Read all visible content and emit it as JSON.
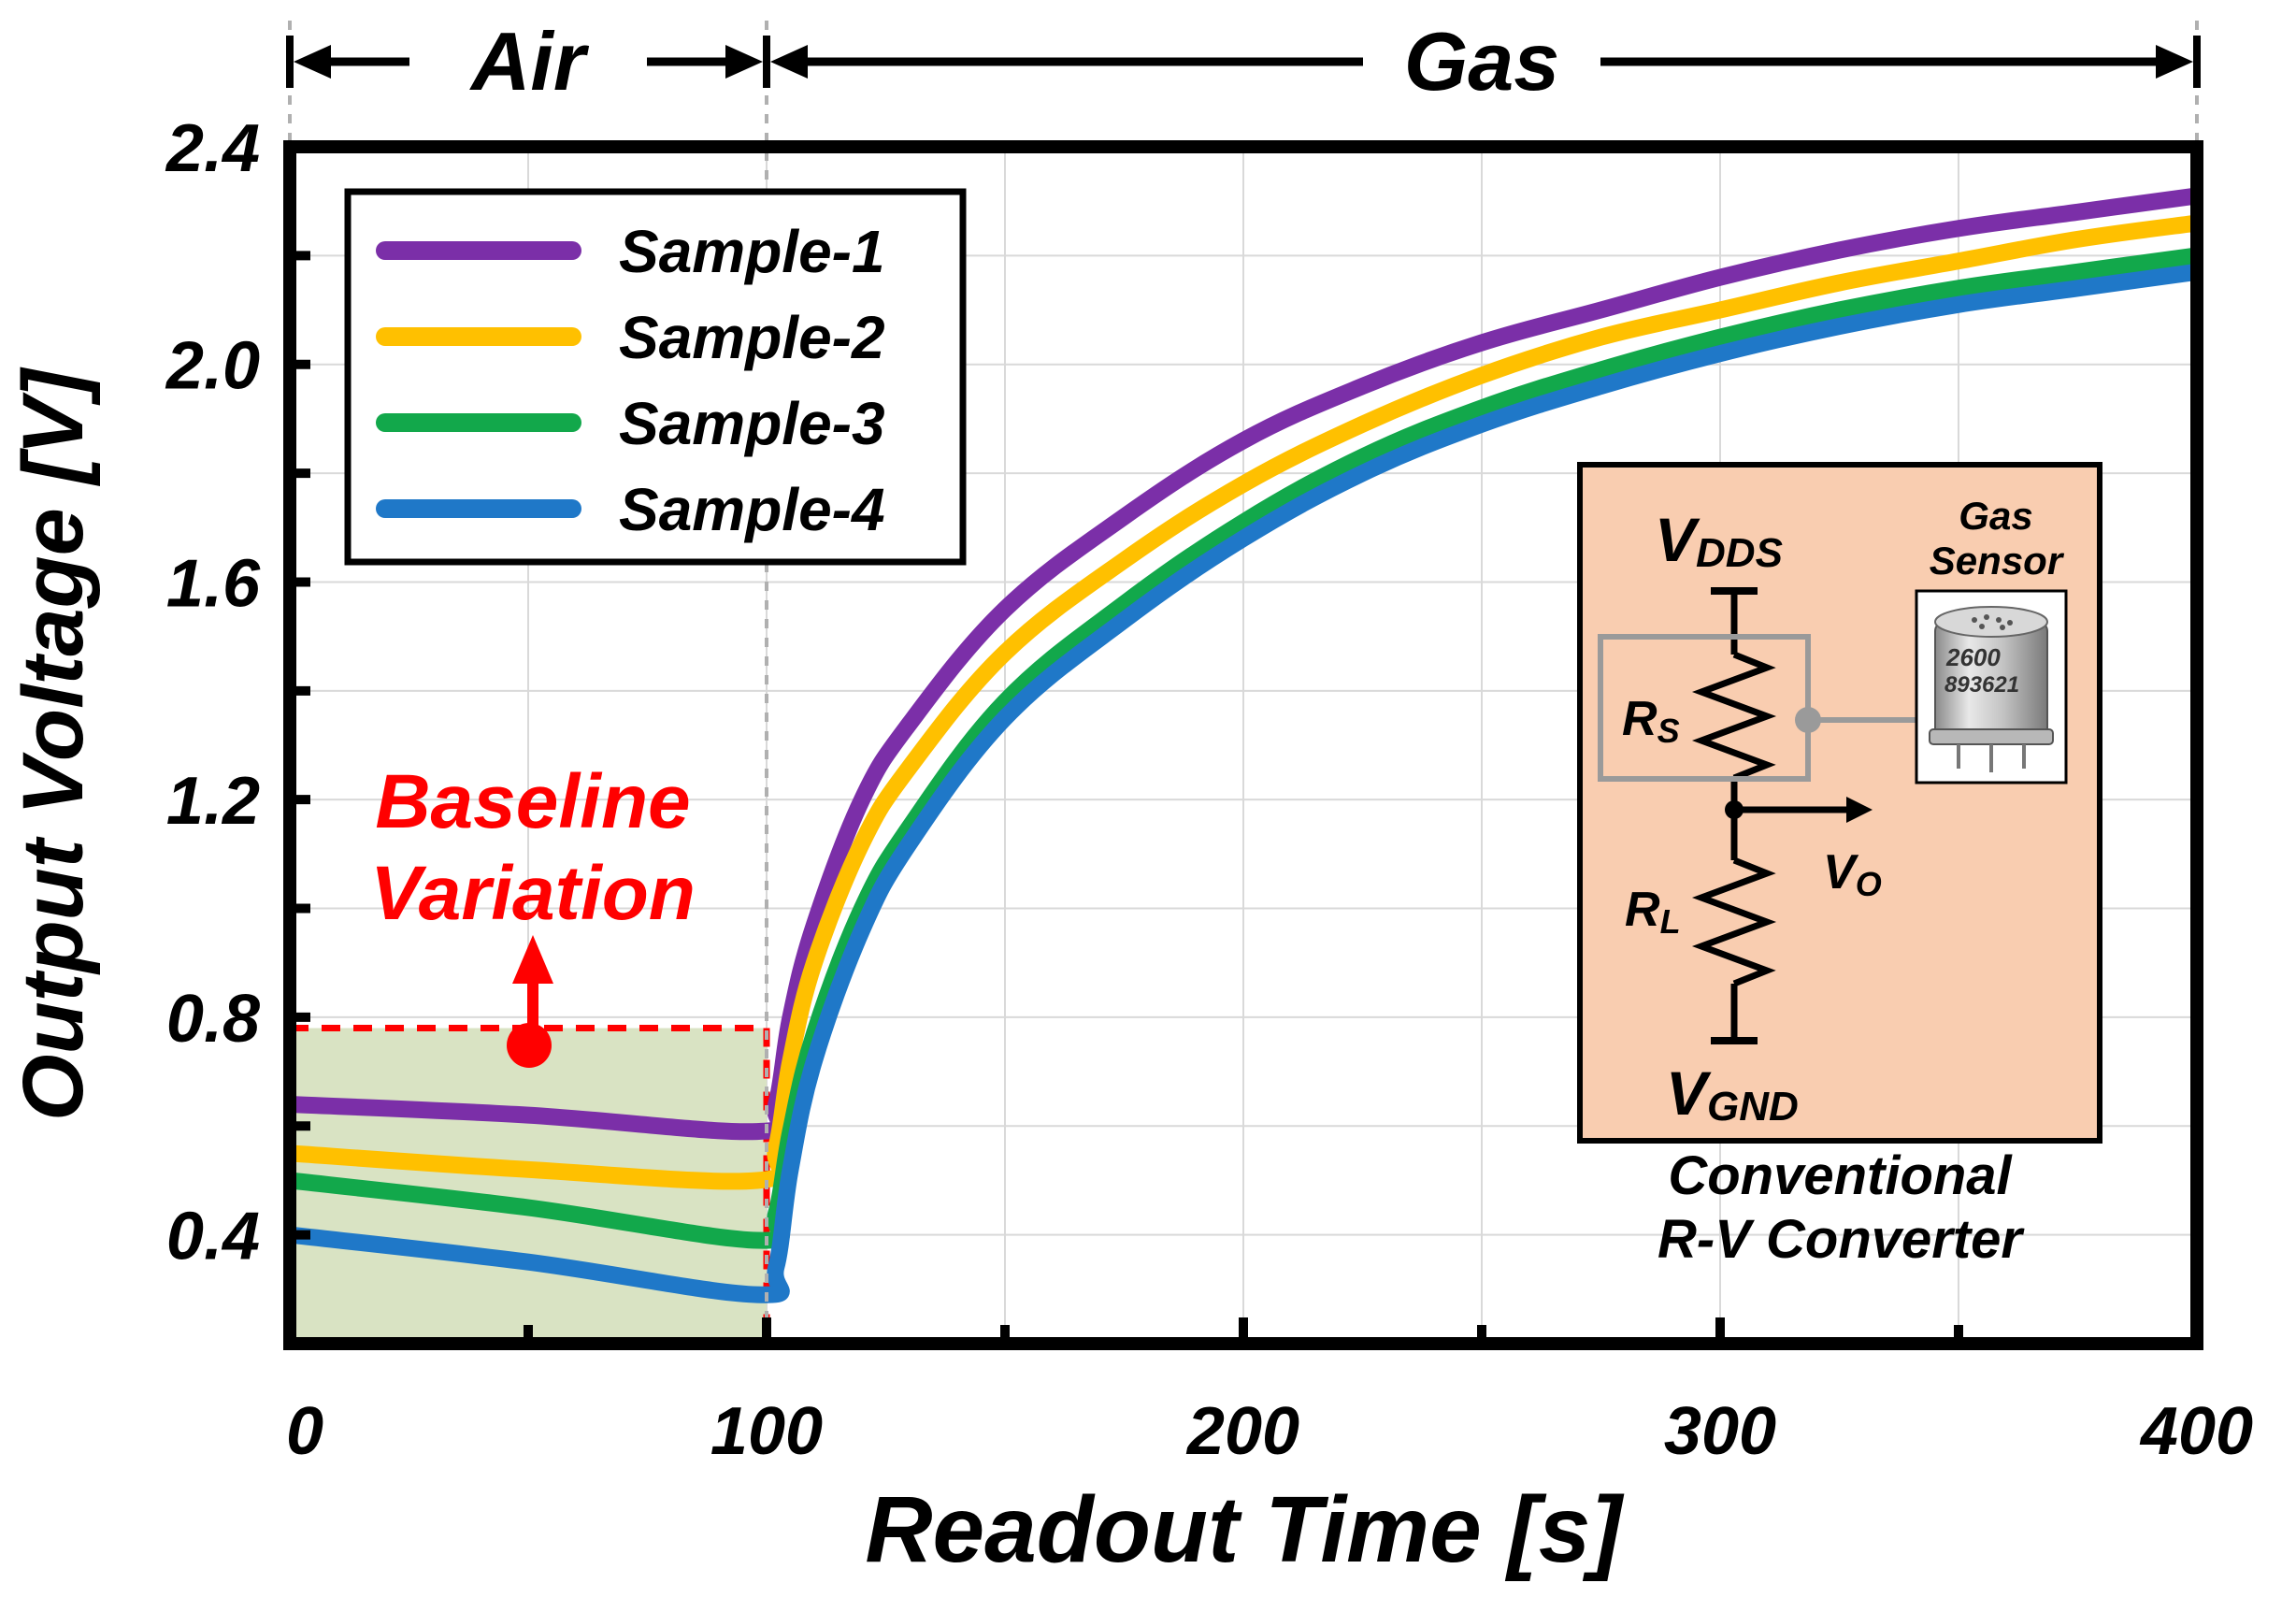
{
  "chart_data": {
    "type": "line",
    "title": "",
    "xlabel": "Readout Time [s]",
    "ylabel": "Output Voltage [V]",
    "xlim": [
      0,
      400
    ],
    "ylim": [
      0.2,
      2.4
    ],
    "xticks": [
      0,
      100,
      200,
      300,
      400
    ],
    "xtick_labels": [
      "0",
      "100",
      "200",
      "300",
      "400"
    ],
    "yticks": [
      0.4,
      0.8,
      1.2,
      1.6,
      2.0,
      2.4
    ],
    "ytick_labels": [
      "0.4",
      "0.8",
      "1.2",
      "1.6",
      "2.0",
      "2.4"
    ],
    "grid": true,
    "legend_position": "top-left",
    "phases": [
      {
        "label": "Air",
        "from": 0,
        "to": 100
      },
      {
        "label": "Gas",
        "from": 100,
        "to": 400
      }
    ],
    "series": [
      {
        "name": "Sample-1",
        "color": "#7B2FA8",
        "x": [
          0,
          50,
          98,
          102,
          105,
          110,
          120,
          130,
          150,
          175,
          200,
          225,
          250,
          275,
          300,
          325,
          350,
          375,
          400
        ],
        "y": [
          0.64,
          0.62,
          0.59,
          0.64,
          0.8,
          0.97,
          1.2,
          1.34,
          1.55,
          1.72,
          1.86,
          1.96,
          2.04,
          2.1,
          2.16,
          2.21,
          2.25,
          2.28,
          2.31
        ]
      },
      {
        "name": "Sample-2",
        "color": "#FFC000",
        "x": [
          0,
          50,
          98,
          102,
          105,
          110,
          120,
          130,
          150,
          175,
          200,
          225,
          250,
          275,
          300,
          325,
          350,
          375,
          400
        ],
        "y": [
          0.55,
          0.52,
          0.5,
          0.56,
          0.72,
          0.9,
          1.12,
          1.26,
          1.47,
          1.64,
          1.78,
          1.89,
          1.98,
          2.05,
          2.1,
          2.15,
          2.19,
          2.23,
          2.26
        ]
      },
      {
        "name": "Sample-3",
        "color": "#12A84B",
        "x": [
          0,
          50,
          98,
          102,
          105,
          110,
          120,
          130,
          150,
          175,
          200,
          225,
          250,
          275,
          300,
          325,
          350,
          375,
          400
        ],
        "y": [
          0.5,
          0.45,
          0.39,
          0.44,
          0.59,
          0.77,
          1.0,
          1.15,
          1.38,
          1.56,
          1.71,
          1.83,
          1.92,
          1.99,
          2.05,
          2.1,
          2.14,
          2.17,
          2.2
        ]
      },
      {
        "name": "Sample-4",
        "color": "#1F78C8",
        "x": [
          0,
          50,
          98,
          102,
          105,
          110,
          120,
          130,
          150,
          175,
          200,
          225,
          250,
          275,
          300,
          325,
          350,
          375,
          400
        ],
        "y": [
          0.4,
          0.35,
          0.29,
          0.34,
          0.52,
          0.72,
          0.96,
          1.12,
          1.35,
          1.53,
          1.68,
          1.8,
          1.89,
          1.96,
          2.02,
          2.07,
          2.11,
          2.14,
          2.17
        ]
      }
    ],
    "annotations": {
      "baseline_line1": "Baseline",
      "baseline_line2": "Variation",
      "baseline_region": {
        "x": [
          0,
          100
        ],
        "y": [
          0.2,
          0.78
        ]
      },
      "baseline_color": "#FF0000"
    },
    "inset": {
      "title_line1": "Conventional",
      "title_line2": "R-V Converter",
      "vdd_main": "V",
      "vdd_sub": "DDS",
      "vgnd_main": "V",
      "vgnd_sub": "GND",
      "rs_main": "R",
      "rs_sub": "S",
      "rl_main": "R",
      "rl_sub": "L",
      "vo_main": "V",
      "vo_sub": "O",
      "sensor_label_line1": "Gas",
      "sensor_label_line2": "Sensor",
      "sensor_text_line1": "2600",
      "sensor_text_line2": "893621",
      "background": "#F9CDB0"
    }
  }
}
